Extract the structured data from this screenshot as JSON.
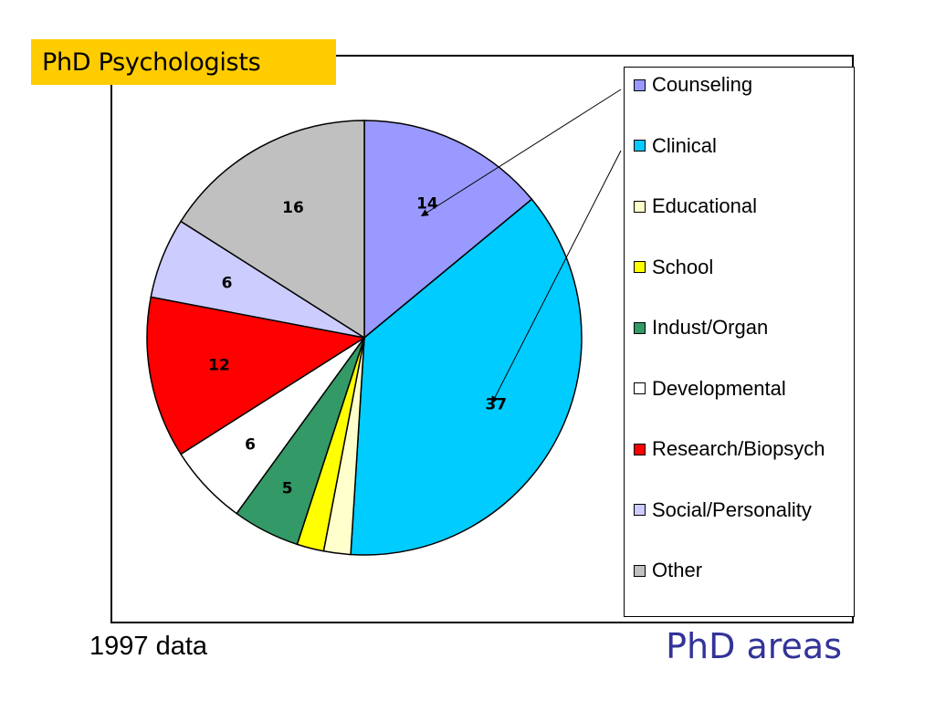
{
  "header": {
    "title": "PhD Psychologists"
  },
  "footer": {
    "note": "1997 data",
    "subtitle": "PhD areas"
  },
  "chart_data": {
    "type": "pie",
    "title": "",
    "slices": [
      {
        "name": "Counseling",
        "value": 14,
        "color": "#9999ff",
        "label": "14"
      },
      {
        "name": "Clinical",
        "value": 37,
        "color": "#00ccff",
        "label": "37"
      },
      {
        "name": "Educational",
        "value": 2,
        "color": "#ffffcc",
        "label": ""
      },
      {
        "name": "School",
        "value": 2,
        "color": "#ffff00",
        "label": ""
      },
      {
        "name": "Indust/Organ",
        "value": 5,
        "color": "#339966",
        "label": "5"
      },
      {
        "name": "Developmental",
        "value": 6,
        "color": "#ffffff",
        "label": "6"
      },
      {
        "name": "Research/Biopsych",
        "value": 12,
        "color": "#ff0000",
        "label": "12"
      },
      {
        "name": "Social/Personality",
        "value": 6,
        "color": "#ccccff",
        "label": "6"
      },
      {
        "name": "Other",
        "value": 16,
        "color": "#c0c0c0",
        "label": "16"
      }
    ],
    "start_angle": "12 o'clock",
    "direction": "clockwise",
    "legend": "right",
    "annotations": [
      "arrow: Counseling",
      "arrow: Clinical"
    ]
  }
}
